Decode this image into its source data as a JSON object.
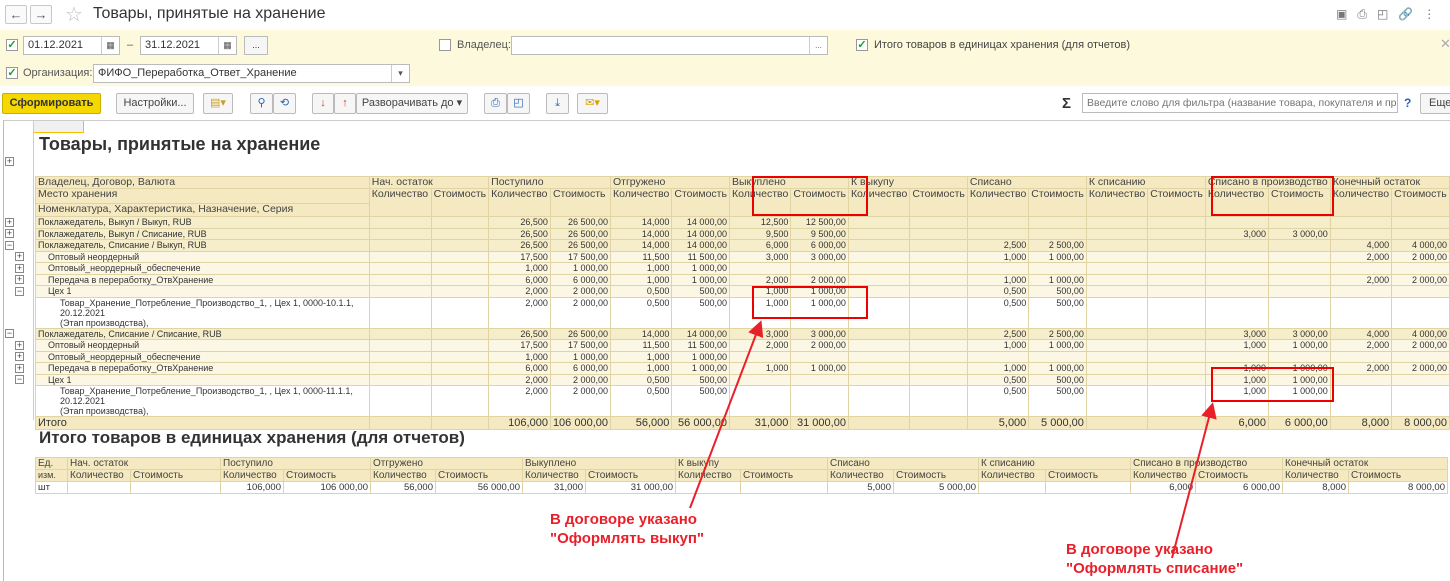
{
  "window": {
    "title": "Товары, принятые на хранение",
    "back": "←",
    "forward": "→",
    "star": "☆",
    "icons": [
      "save-icon",
      "print-icon",
      "preview-icon",
      "link-icon",
      "more-icon"
    ]
  },
  "filters": {
    "date_from": "01.12.2021",
    "date_to": "31.12.2021",
    "dash": "–",
    "dots": "...",
    "owner_label": "Владелец:",
    "owner_value": "",
    "org_label": "Организация:",
    "org_value": "ФИФО_Переработка_Ответ_Хранение",
    "totals_label": "Итого товаров в единицах хранения (для отчетов)",
    "date_checked": true,
    "owner_checked": false,
    "org_checked": true,
    "totals_checked": true
  },
  "toolbar": {
    "generate": "Сформировать",
    "settings": "Настройки...",
    "expand_to": "Разворачивать до",
    "sigma": "Σ",
    "search_placeholder": "Введите слово для фильтра (название товара, покупателя и пр.)",
    "help": "?",
    "more": "Еще",
    "accent": "#f5d800"
  },
  "report": {
    "title": "Товары, принятые на хранение",
    "head": {
      "g1": "Владелец, Договор, Валюта",
      "g2": "Место хранения",
      "g3": "Номенклатура, Характеристика, Назначение, Серия",
      "groups": [
        "Нач. остаток",
        "Поступило",
        "Отгружено",
        "Выкуплено",
        "К выкупу",
        "Списано",
        "К списанию",
        "Списано в производство",
        "Конечный остаток"
      ],
      "qty": "Количество",
      "cost": "Стоимость"
    },
    "rows": [
      {
        "level": 0,
        "exp": "+",
        "label": "Поклажедатель, Выкуп / Выкуп, RUB",
        "v": [
          "",
          "",
          "26,500",
          "26 500,00",
          "14,000",
          "14 000,00",
          "12,500",
          "12 500,00",
          "",
          "",
          "",
          "",
          "",
          "",
          "",
          "",
          "",
          ""
        ]
      },
      {
        "level": 0,
        "exp": "+",
        "label": "Поклажедатель, Выкуп / Списание, RUB",
        "v": [
          "",
          "",
          "26,500",
          "26 500,00",
          "14,000",
          "14 000,00",
          "9,500",
          "9 500,00",
          "",
          "",
          "",
          "",
          "",
          "",
          "3,000",
          "3 000,00",
          "",
          ""
        ]
      },
      {
        "level": 0,
        "exp": "−",
        "label": "Поклажедатель, Списание / Выкуп, RUB",
        "v": [
          "",
          "",
          "26,500",
          "26 500,00",
          "14,000",
          "14 000,00",
          "6,000",
          "6 000,00",
          "",
          "",
          "2,500",
          "2 500,00",
          "",
          "",
          "",
          "",
          "4,000",
          "4 000,00"
        ]
      },
      {
        "level": 1,
        "exp": "+",
        "label": "Оптовый неордерный",
        "v": [
          "",
          "",
          "17,500",
          "17 500,00",
          "11,500",
          "11 500,00",
          "3,000",
          "3 000,00",
          "",
          "",
          "1,000",
          "1 000,00",
          "",
          "",
          "",
          "",
          "2,000",
          "2 000,00"
        ]
      },
      {
        "level": 1,
        "exp": "+",
        "label": "Оптовый_неордерный_обеспечение",
        "v": [
          "",
          "",
          "1,000",
          "1 000,00",
          "1,000",
          "1 000,00",
          "",
          "",
          "",
          "",
          "",
          "",
          "",
          "",
          "",
          "",
          "",
          ""
        ]
      },
      {
        "level": 1,
        "exp": "+",
        "label": "Передача в переработку_ОтвХранение",
        "v": [
          "",
          "",
          "6,000",
          "6 000,00",
          "1,000",
          "1 000,00",
          "2,000",
          "2 000,00",
          "",
          "",
          "1,000",
          "1 000,00",
          "",
          "",
          "",
          "",
          "2,000",
          "2 000,00"
        ]
      },
      {
        "level": 1,
        "exp": "−",
        "label": "Цех 1",
        "v": [
          "",
          "",
          "2,000",
          "2 000,00",
          "0,500",
          "500,00",
          "1,000",
          "1 000,00",
          "",
          "",
          "0,500",
          "500,00",
          "",
          "",
          "",
          "",
          "",
          ""
        ]
      },
      {
        "level": 2,
        "exp": "",
        "label": "Товар_Хранение_Потребление_Производство_1, , Цех 1, 0000-10.1.1, 20.12.2021",
        "label2": "(Этап производства),",
        "v": [
          "",
          "",
          "2,000",
          "2 000,00",
          "0,500",
          "500,00",
          "1,000",
          "1 000,00",
          "",
          "",
          "0,500",
          "500,00",
          "",
          "",
          "",
          "",
          "",
          ""
        ]
      },
      {
        "level": 0,
        "exp": "−",
        "label": "Поклажедатель, Списание / Списание, RUB",
        "v": [
          "",
          "",
          "26,500",
          "26 500,00",
          "14,000",
          "14 000,00",
          "3,000",
          "3 000,00",
          "",
          "",
          "2,500",
          "2 500,00",
          "",
          "",
          "3,000",
          "3 000,00",
          "4,000",
          "4 000,00"
        ]
      },
      {
        "level": 1,
        "exp": "+",
        "label": "Оптовый неордерный",
        "v": [
          "",
          "",
          "17,500",
          "17 500,00",
          "11,500",
          "11 500,00",
          "2,000",
          "2 000,00",
          "",
          "",
          "1,000",
          "1 000,00",
          "",
          "",
          "1,000",
          "1 000,00",
          "2,000",
          "2 000,00"
        ]
      },
      {
        "level": 1,
        "exp": "+",
        "label": "Оптовый_неордерный_обеспечение",
        "v": [
          "",
          "",
          "1,000",
          "1 000,00",
          "1,000",
          "1 000,00",
          "",
          "",
          "",
          "",
          "",
          "",
          "",
          "",
          "",
          "",
          "",
          ""
        ]
      },
      {
        "level": 1,
        "exp": "+",
        "label": "Передача в переработку_ОтвХранение",
        "v": [
          "",
          "",
          "6,000",
          "6 000,00",
          "1,000",
          "1 000,00",
          "1,000",
          "1 000,00",
          "",
          "",
          "1,000",
          "1 000,00",
          "",
          "",
          "1,000",
          "1 000,00",
          "2,000",
          "2 000,00"
        ]
      },
      {
        "level": 1,
        "exp": "−",
        "label": "Цех 1",
        "v": [
          "",
          "",
          "2,000",
          "2 000,00",
          "0,500",
          "500,00",
          "",
          "",
          "",
          "",
          "0,500",
          "500,00",
          "",
          "",
          "1,000",
          "1 000,00",
          "",
          ""
        ]
      },
      {
        "level": 2,
        "exp": "",
        "label": "Товар_Хранение_Потребление_Производство_1, , Цех 1, 0000-11.1.1, 20.12.2021",
        "label2": "(Этап производства),",
        "v": [
          "",
          "",
          "2,000",
          "2 000,00",
          "0,500",
          "500,00",
          "",
          "",
          "",
          "",
          "0,500",
          "500,00",
          "",
          "",
          "1,000",
          "1 000,00",
          "",
          ""
        ]
      }
    ],
    "total": {
      "label": "Итого",
      "v": [
        "",
        "",
        "106,000",
        "106 000,00",
        "56,000",
        "56 000,00",
        "31,000",
        "31 000,00",
        "",
        "",
        "5,000",
        "5 000,00",
        "",
        "",
        "6,000",
        "6 000,00",
        "8,000",
        "8 000,00"
      ]
    }
  },
  "units": {
    "title": "Итого товаров в единицах хранения (для отчетов)",
    "unit_h1": "Ед.",
    "unit_h2": "изм.",
    "row": {
      "unit": "шт",
      "v": [
        "",
        "",
        "106,000",
        "106 000,00",
        "56,000",
        "56 000,00",
        "31,000",
        "31 000,00",
        "",
        "",
        "5,000",
        "5 000,00",
        "",
        "",
        "6,000",
        "6 000,00",
        "8,000",
        "8 000,00"
      ]
    }
  },
  "annotations": {
    "note1": "В договоре указано\n\"Оформлять выкуп\"",
    "note2": "В договоре указано\n\"Оформлять списание\"",
    "color": "#e8202a"
  }
}
